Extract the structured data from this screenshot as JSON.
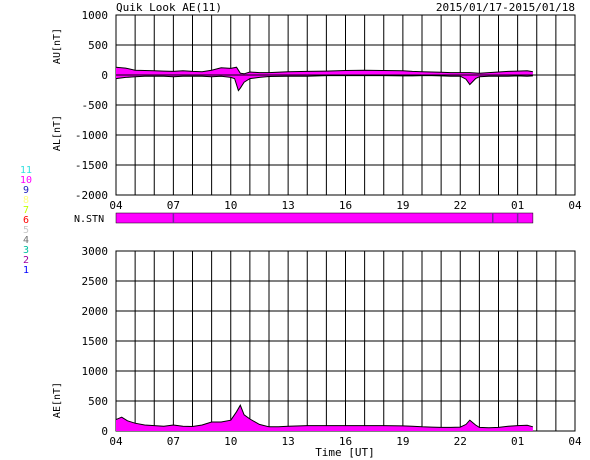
{
  "header": {
    "title": "Quik Look AE(11)",
    "date_range": "2015/01/17-2015/01/18"
  },
  "colors": {
    "fill": "#ff00ff",
    "line": "#000000",
    "stn_marker": "#7a1fa2"
  },
  "station_legend": [
    {
      "label": "11",
      "color": "#33e0e0"
    },
    {
      "label": "10",
      "color": "#ff00ff"
    },
    {
      "label": "9",
      "color": "#2020c0"
    },
    {
      "label": "8",
      "color": "#ffff80"
    },
    {
      "label": "7",
      "color": "#c0ff00"
    },
    {
      "label": "6",
      "color": "#ff0000"
    },
    {
      "label": "5",
      "color": "#c8c8c8"
    },
    {
      "label": "4",
      "color": "#707070"
    },
    {
      "label": "3",
      "color": "#00c0a0"
    },
    {
      "label": "2",
      "color": "#a000a0"
    },
    {
      "label": "1",
      "color": "#0000ff"
    }
  ],
  "nstn": {
    "label": "N.STN",
    "change_hours": [
      7.0,
      23.7,
      25.0
    ],
    "end_hour": 25.8
  },
  "chart_data": [
    {
      "type": "area",
      "panel": "AU/AL",
      "xlabel": "",
      "xticks": [
        "04",
        "07",
        "10",
        "13",
        "16",
        "19",
        "22",
        "01",
        "04"
      ],
      "x_range_hours": [
        4,
        28
      ],
      "ylabels": [
        "AU[nT]",
        "AL[nT]"
      ],
      "yticks": [
        "1000",
        "500",
        "0",
        "-500",
        "-1000",
        "-1500",
        "-2000"
      ],
      "ylim": [
        -2000,
        1000
      ],
      "grid": true,
      "series": [
        {
          "name": "AU",
          "x": [
            4.0,
            4.5,
            5.0,
            5.5,
            6.0,
            6.5,
            7.0,
            7.5,
            8.0,
            8.5,
            9.0,
            9.5,
            10.0,
            10.3,
            10.5,
            10.7,
            11.0,
            11.5,
            12.0,
            13.0,
            14.0,
            15.0,
            16.0,
            17.0,
            18.0,
            19.0,
            19.5,
            20.0,
            20.5,
            21.0,
            21.5,
            22.0,
            22.5,
            23.0,
            23.5,
            24.0,
            24.5,
            25.0,
            25.5,
            25.8
          ],
          "values": [
            130,
            115,
            80,
            75,
            70,
            65,
            60,
            70,
            60,
            55,
            80,
            120,
            110,
            130,
            30,
            20,
            50,
            40,
            40,
            55,
            60,
            65,
            75,
            80,
            75,
            70,
            60,
            55,
            50,
            45,
            40,
            40,
            40,
            30,
            40,
            50,
            60,
            65,
            70,
            55
          ]
        },
        {
          "name": "AL",
          "x": [
            4.0,
            4.5,
            5.0,
            5.5,
            6.0,
            6.5,
            7.0,
            7.5,
            8.0,
            8.5,
            9.0,
            9.5,
            10.0,
            10.2,
            10.4,
            10.5,
            10.7,
            11.0,
            11.5,
            12.0,
            13.0,
            14.0,
            15.0,
            16.0,
            17.0,
            18.0,
            19.0,
            19.5,
            20.0,
            20.5,
            21.0,
            21.5,
            22.0,
            22.3,
            22.5,
            22.8,
            23.0,
            23.5,
            24.0,
            24.5,
            25.0,
            25.5,
            25.8
          ],
          "values": [
            -60,
            -40,
            -30,
            -20,
            -20,
            -20,
            -30,
            -20,
            -20,
            -20,
            -30,
            -20,
            -40,
            -60,
            -260,
            -220,
            -120,
            -60,
            -40,
            -25,
            -20,
            -20,
            -10,
            -10,
            -10,
            -10,
            -15,
            -15,
            -10,
            -10,
            -15,
            -20,
            -20,
            -70,
            -160,
            -60,
            -30,
            -20,
            -20,
            -20,
            -15,
            -20,
            -15
          ]
        }
      ]
    },
    {
      "type": "area",
      "panel": "AE",
      "xlabel": "Time [UT]",
      "xticks": [
        "04",
        "07",
        "10",
        "13",
        "16",
        "19",
        "22",
        "01",
        "04"
      ],
      "x_range_hours": [
        4,
        28
      ],
      "ylabel": "AE[nT]",
      "yticks": [
        "3000",
        "2500",
        "2000",
        "1500",
        "1000",
        "500",
        "0"
      ],
      "ylim": [
        0,
        3000
      ],
      "grid": true,
      "series": [
        {
          "name": "AE",
          "x": [
            4.0,
            4.3,
            4.6,
            5.0,
            5.5,
            6.0,
            6.5,
            7.0,
            7.5,
            8.0,
            8.5,
            9.0,
            9.5,
            10.0,
            10.3,
            10.5,
            10.7,
            11.0,
            11.5,
            12.0,
            12.5,
            13.0,
            14.0,
            15.0,
            16.0,
            17.0,
            18.0,
            19.0,
            19.5,
            20.0,
            20.5,
            21.0,
            21.5,
            22.0,
            22.3,
            22.5,
            22.8,
            23.0,
            23.5,
            24.0,
            24.5,
            25.0,
            25.5,
            25.8
          ],
          "values": [
            190,
            230,
            170,
            130,
            100,
            90,
            80,
            100,
            80,
            75,
            100,
            150,
            150,
            180,
            320,
            430,
            270,
            200,
            110,
            70,
            70,
            80,
            90,
            90,
            90,
            90,
            90,
            85,
            80,
            70,
            65,
            60,
            60,
            65,
            110,
            180,
            100,
            60,
            55,
            60,
            80,
            90,
            95,
            70
          ]
        }
      ]
    }
  ]
}
